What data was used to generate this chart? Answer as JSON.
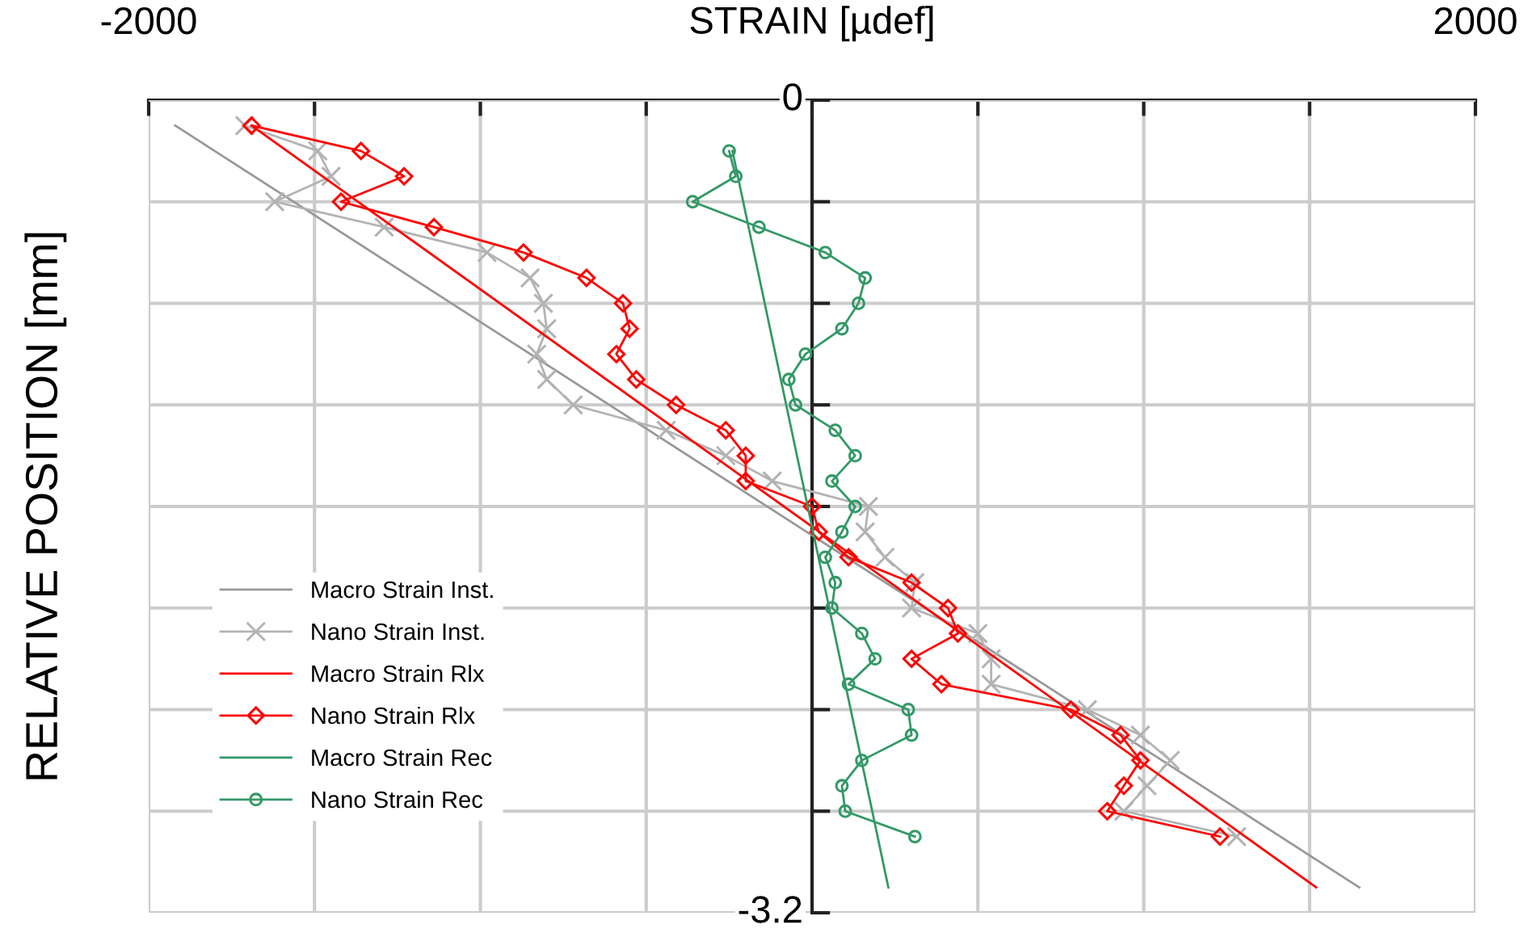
{
  "chart_data": {
    "type": "line",
    "xlabel": "STRAIN [µdef]",
    "ylabel": "RELATIVE POSITION [mm]",
    "xlim": [
      -2000,
      2000
    ],
    "ylim": [
      -3.2,
      0
    ],
    "xticks": [
      -2000,
      {
        "value": -1500,
        "label": null
      },
      {
        "value": -1000,
        "label": null
      },
      {
        "value": -500,
        "label": null
      },
      {
        "value": 0,
        "label": null
      },
      {
        "value": 500,
        "label": null
      },
      {
        "value": 1000,
        "label": null
      },
      {
        "value": 1500,
        "label": null
      },
      2000
    ],
    "yticks": [
      0,
      {
        "value": -0.4,
        "label": null
      },
      {
        "value": -0.8,
        "label": null
      },
      {
        "value": -1.2,
        "label": null
      },
      {
        "value": -1.6,
        "label": null
      },
      {
        "value": -2.0,
        "label": null
      },
      {
        "value": -2.4,
        "label": null
      },
      {
        "value": -2.8,
        "label": null
      },
      -3.2
    ],
    "grid": true,
    "legend": "bottom left",
    "series": [
      {
        "name": "Macro Strain Inst.",
        "color": "#999999",
        "marker": "none",
        "x": [
          -1920,
          1650
        ],
        "values": [
          -0.1,
          -3.1
        ]
      },
      {
        "name": "Nano Strain Inst.",
        "color": "#b3b3b3",
        "marker": "cross",
        "x": [
          -1710,
          -1490,
          -1450,
          -1620,
          -1290,
          -980,
          -850,
          -810,
          -800,
          -830,
          -800,
          -720,
          -440,
          -260,
          -120,
          170,
          160,
          220,
          310,
          300,
          500,
          540,
          540,
          830,
          990,
          1080,
          1010,
          940,
          1280
        ],
        "values": [
          -0.1,
          -0.2,
          -0.3,
          -0.4,
          -0.5,
          -0.6,
          -0.7,
          -0.8,
          -0.9,
          -1.0,
          -1.1,
          -1.2,
          -1.3,
          -1.4,
          -1.5,
          -1.6,
          -1.7,
          -1.8,
          -1.9,
          -2.0,
          -2.1,
          -2.2,
          -2.3,
          -2.4,
          -2.5,
          -2.6,
          -2.7,
          -2.8,
          -2.9
        ]
      },
      {
        "name": "Macro Strain Rlx",
        "color": "#ff0000",
        "x": [
          -1690,
          1520
        ],
        "values": [
          -0.1,
          -3.1
        ]
      },
      {
        "name": "Nano Strain Rlx",
        "color": "#ff0000",
        "marker": "diamond",
        "x": [
          -1690,
          -1360,
          -1230,
          -1420,
          -1140,
          -870,
          -680,
          -570,
          -550,
          -590,
          -530,
          -410,
          -260,
          -200,
          -200,
          0,
          20,
          110,
          300,
          410,
          440,
          300,
          390,
          780,
          930,
          990,
          940,
          890,
          1230
        ],
        "values": [
          -0.1,
          -0.2,
          -0.3,
          -0.4,
          -0.5,
          -0.6,
          -0.7,
          -0.8,
          -0.9,
          -1.0,
          -1.1,
          -1.2,
          -1.3,
          -1.4,
          -1.5,
          -1.6,
          -1.7,
          -1.8,
          -1.9,
          -2.0,
          -2.1,
          -2.2,
          -2.3,
          -2.4,
          -2.5,
          -2.6,
          -2.7,
          -2.8,
          -2.9
        ]
      },
      {
        "name": "Macro Strain Rec",
        "color": "#339966",
        "marker": "none",
        "x": [
          -240,
          230
        ],
        "values": [
          -0.2,
          -3.1
        ]
      },
      {
        "name": "Nano Strain Rec",
        "color": "#339966",
        "marker": "circle",
        "x": [
          -250,
          -230,
          -360,
          -160,
          40,
          160,
          140,
          90,
          -20,
          -70,
          -50,
          70,
          130,
          60,
          130,
          90,
          40,
          70,
          60,
          150,
          190,
          110,
          290,
          300,
          150,
          90,
          100,
          310
        ],
        "values": [
          -0.2,
          -0.3,
          -0.4,
          -0.5,
          -0.6,
          -0.7,
          -0.8,
          -0.9,
          -1.0,
          -1.1,
          -1.2,
          -1.3,
          -1.4,
          -1.5,
          -1.6,
          -1.7,
          -1.8,
          -1.9,
          -2.0,
          -2.1,
          -2.2,
          -2.3,
          -2.4,
          -2.5,
          -2.6,
          -2.7,
          -2.8,
          -2.9
        ]
      }
    ]
  }
}
